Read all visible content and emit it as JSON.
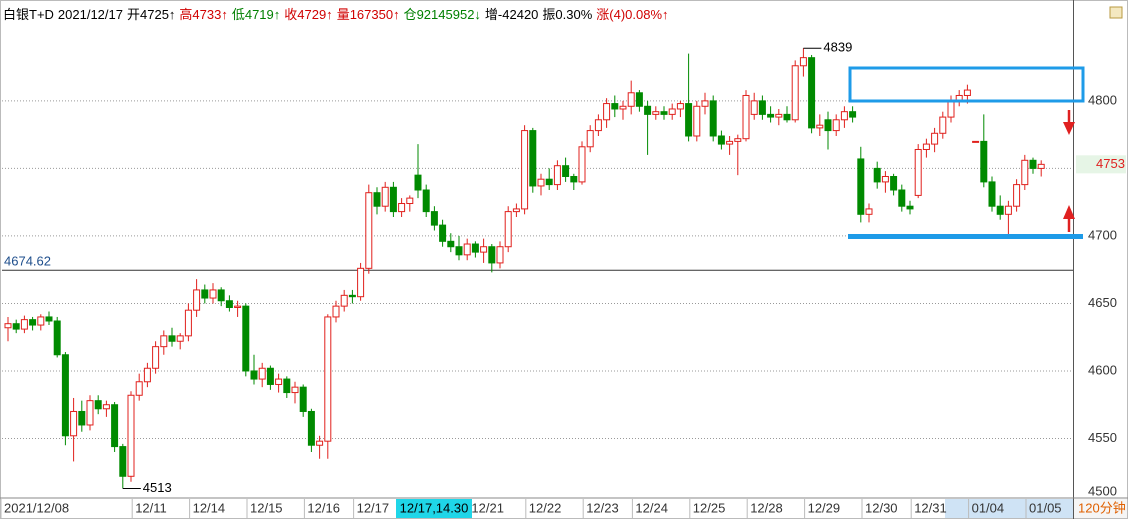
{
  "chart_data": {
    "type": "candlestick",
    "header": [
      {
        "text": "白银T+D",
        "color": "#000000"
      },
      {
        "text": "2021/12/17",
        "color": "#000000"
      },
      {
        "text": "开4725↑",
        "color": "#000000"
      },
      {
        "text": "高4733↑",
        "color": "#d00000"
      },
      {
        "text": "低4719↑",
        "color": "#008000"
      },
      {
        "text": "收4729↑",
        "color": "#d00000"
      },
      {
        "text": "量167350↑",
        "color": "#d00000"
      },
      {
        "text": "仓92145952↓",
        "color": "#008000"
      },
      {
        "text": "增-42420",
        "color": "#000000"
      },
      {
        "text": "振0.30%",
        "color": "#000000"
      },
      {
        "text": "涨(4)0.08%↑",
        "color": "#d00000"
      }
    ],
    "categories": [
      "2021/12/08",
      null,
      null,
      null,
      null,
      null,
      null,
      null,
      null,
      null,
      null,
      null,
      null,
      null,
      null,
      null,
      "12/11",
      null,
      null,
      null,
      null,
      null,
      null,
      "12/14",
      null,
      null,
      null,
      null,
      null,
      null,
      "12/15",
      null,
      null,
      null,
      null,
      null,
      null,
      "12/16",
      null,
      null,
      null,
      null,
      null,
      "12/17",
      null,
      null,
      null,
      null,
      null,
      null,
      null,
      null,
      null,
      null,
      null,
      null,
      null,
      "12/21",
      null,
      null,
      null,
      null,
      null,
      null,
      "12/22",
      null,
      null,
      null,
      null,
      null,
      null,
      "12/23",
      null,
      null,
      null,
      null,
      null,
      "12/24",
      null,
      null,
      null,
      null,
      null,
      null,
      "12/25",
      null,
      null,
      null,
      null,
      null,
      null,
      "12/28",
      null,
      null,
      null,
      null,
      null,
      null,
      "12/29",
      null,
      null,
      null,
      null,
      null,
      null,
      "12/30",
      null,
      null,
      null,
      null,
      null,
      "12/31",
      null,
      null,
      null,
      null,
      null,
      null,
      "01/04",
      null,
      null,
      null,
      null,
      null,
      null,
      "01/05",
      null
    ],
    "open": [
      4632,
      4635,
      4631,
      4638,
      4634,
      4640,
      4637,
      4612,
      4552,
      4570,
      4560,
      4578,
      4572,
      4575,
      4544,
      4522,
      4582,
      4592,
      4602,
      4618,
      4626,
      4622,
      4626,
      4645,
      4660,
      4654,
      4660,
      4652,
      4647,
      4648,
      4600,
      4594,
      4602,
      4590,
      4594,
      4584,
      4588,
      4570,
      4545,
      4548,
      4640,
      4648,
      4656,
      4655,
      4676,
      4732,
      4722,
      4736,
      4718,
      4724,
      4745,
      4734,
      4718,
      4708,
      4696,
      4692,
      4686,
      4694,
      4688,
      4692,
      4680,
      4692,
      4718,
      4720,
      4778,
      4737,
      4742,
      4738,
      4752,
      4744,
      4740,
      4766,
      4778,
      4786,
      4798,
      4794,
      4796,
      4806,
      4796,
      4790,
      4792,
      4790,
      4794,
      4798,
      4774,
      4796,
      4800,
      4774,
      4768,
      4770,
      4772,
      4790,
      4800,
      4790,
      4788,
      4790,
      4786,
      4826,
      4832,
      4780,
      4786,
      4778,
      4786,
      4792,
      4757,
      4716,
      4750,
      4740,
      4744,
      4734,
      4722,
      4730,
      4764,
      4768,
      4776,
      4788,
      4800,
      4804,
      4770,
      4770,
      4740,
      4722,
      4716,
      4722,
      4738,
      4756,
      4750
    ],
    "high": [
      4640,
      4638,
      4641,
      4640,
      4642,
      4644,
      4640,
      4614,
      4580,
      4578,
      4582,
      4582,
      4578,
      4577,
      4546,
      4585,
      4598,
      4606,
      4622,
      4630,
      4632,
      4628,
      4650,
      4668,
      4664,
      4665,
      4662,
      4656,
      4652,
      4650,
      4612,
      4606,
      4604,
      4598,
      4596,
      4592,
      4590,
      4572,
      4552,
      4642,
      4652,
      4660,
      4660,
      4680,
      4738,
      4736,
      4740,
      4740,
      4728,
      4730,
      4768,
      4738,
      4722,
      4712,
      4702,
      4700,
      4698,
      4696,
      4698,
      4694,
      4696,
      4722,
      4724,
      4782,
      4780,
      4746,
      4750,
      4756,
      4758,
      4746,
      4770,
      4782,
      4790,
      4802,
      4804,
      4800,
      4815,
      4808,
      4800,
      4796,
      4796,
      4798,
      4800,
      4835,
      4800,
      4806,
      4804,
      4778,
      4774,
      4775,
      4808,
      4806,
      4804,
      4796,
      4794,
      4796,
      4830,
      4839,
      4834,
      4790,
      4792,
      4790,
      4796,
      4796,
      4766,
      4724,
      4755,
      4748,
      4746,
      4738,
      4726,
      4768,
      4772,
      4780,
      4792,
      4804,
      4808,
      4812,
      4770,
      4790,
      4744,
      4730,
      4726,
      4742,
      4760,
      4758,
      4756
    ],
    "low": [
      4622,
      4628,
      4628,
      4630,
      4630,
      4634,
      4610,
      4545,
      4533,
      4555,
      4556,
      4568,
      4566,
      4540,
      4513,
      4518,
      4578,
      4588,
      4598,
      4612,
      4618,
      4616,
      4622,
      4640,
      4650,
      4650,
      4648,
      4644,
      4640,
      4596,
      4590,
      4588,
      4586,
      4584,
      4580,
      4576,
      4566,
      4540,
      4535,
      4535,
      4636,
      4644,
      4650,
      4652,
      4672,
      4716,
      4718,
      4714,
      4714,
      4718,
      4728,
      4714,
      4704,
      4692,
      4688,
      4682,
      4682,
      4684,
      4680,
      4673,
      4676,
      4688,
      4714,
      4716,
      4732,
      4730,
      4734,
      4734,
      4740,
      4734,
      4738,
      4762,
      4774,
      4780,
      4788,
      4786,
      4790,
      4792,
      4760,
      4786,
      4786,
      4786,
      4788,
      4770,
      4770,
      4790,
      4770,
      4764,
      4760,
      4745,
      4770,
      4786,
      4786,
      4784,
      4782,
      4784,
      4784,
      4818,
      4776,
      4774,
      4764,
      4774,
      4780,
      4784,
      4710,
      4710,
      4735,
      4732,
      4730,
      4718,
      4716,
      4728,
      4758,
      4762,
      4772,
      4784,
      4796,
      4798,
      4770,
      4736,
      4718,
      4712,
      4698,
      4718,
      4734,
      4746,
      4744
    ],
    "close": [
      4635,
      4631,
      4638,
      4634,
      4640,
      4637,
      4612,
      4552,
      4570,
      4560,
      4578,
      4572,
      4575,
      4544,
      4522,
      4582,
      4592,
      4602,
      4618,
      4626,
      4622,
      4626,
      4645,
      4660,
      4654,
      4660,
      4652,
      4647,
      4648,
      4600,
      4594,
      4602,
      4590,
      4594,
      4584,
      4588,
      4570,
      4545,
      4548,
      4640,
      4648,
      4656,
      4655,
      4676,
      4732,
      4722,
      4736,
      4718,
      4724,
      4728,
      4734,
      4718,
      4708,
      4696,
      4692,
      4686,
      4694,
      4688,
      4692,
      4680,
      4692,
      4718,
      4720,
      4778,
      4737,
      4742,
      4738,
      4752,
      4744,
      4740,
      4766,
      4778,
      4786,
      4798,
      4794,
      4796,
      4806,
      4796,
      4790,
      4792,
      4790,
      4794,
      4798,
      4774,
      4796,
      4800,
      4774,
      4768,
      4770,
      4772,
      4804,
      4800,
      4790,
      4788,
      4790,
      4786,
      4826,
      4832,
      4780,
      4782,
      4778,
      4786,
      4792,
      4788,
      4716,
      4720,
      4740,
      4744,
      4734,
      4722,
      4720,
      4764,
      4768,
      4776,
      4788,
      4800,
      4804,
      4808,
      4770,
      4740,
      4722,
      4716,
      4722,
      4738,
      4756,
      4750,
      4753
    ],
    "up_color": "#e0201c",
    "down_color": "#008a00",
    "ylim": [
      4500,
      4871
    ],
    "yticks": [
      4500,
      4550,
      4600,
      4650,
      4700,
      4750,
      4800
    ],
    "grid": true,
    "reference_line": 4674.62,
    "last_price": 4753,
    "high_label": 4839,
    "low_label": 4513,
    "cursor_label": "12/17,14.30",
    "period": "120分钟"
  }
}
